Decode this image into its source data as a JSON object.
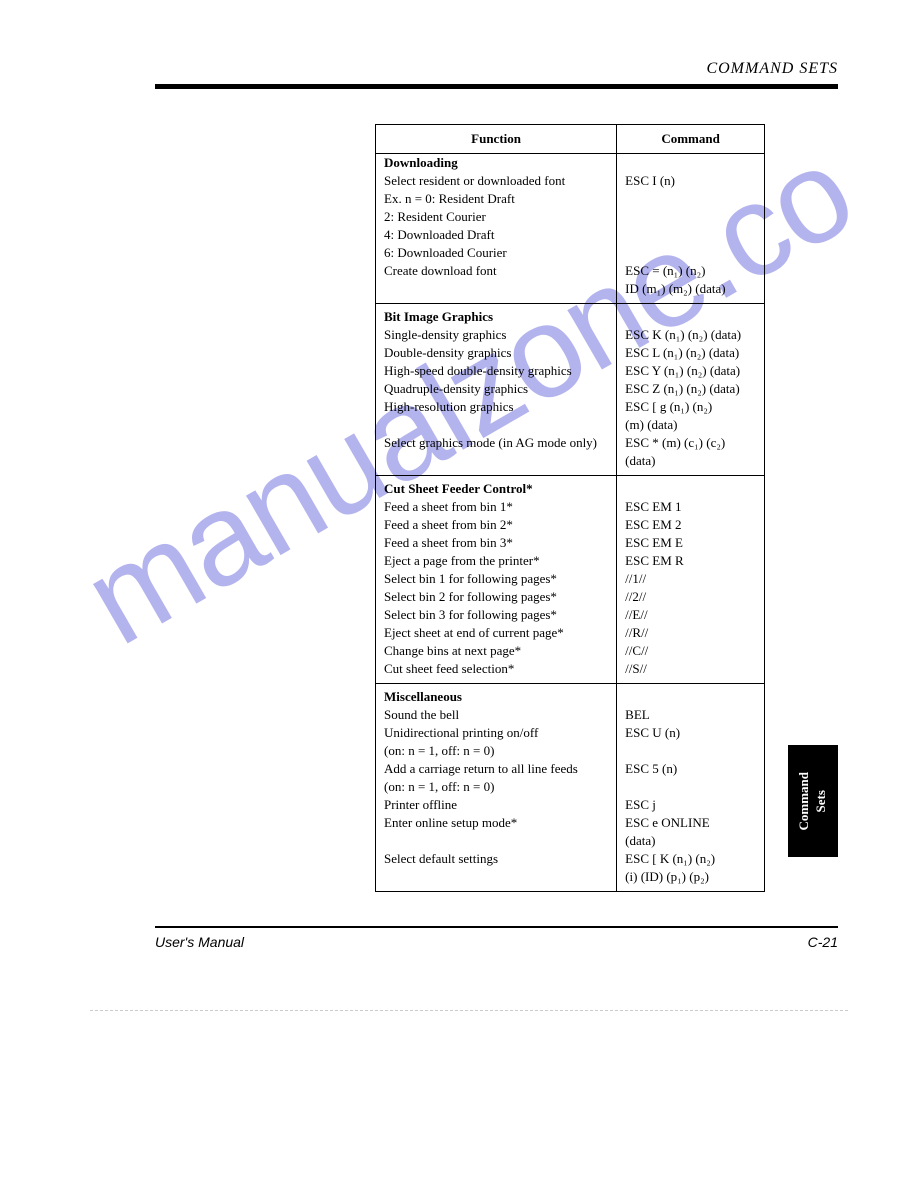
{
  "header": "COMMAND SETS",
  "watermark": "manualzone.co",
  "table": {
    "col_function": "Function",
    "col_command": "Command",
    "sections": {
      "downloading": {
        "title": "Downloading",
        "rows": [
          {
            "func": "Select resident or downloaded font",
            "cmd": "ESC I (n)"
          },
          {
            "func": "Ex. n = 0:   Resident Draft",
            "cmd": ""
          },
          {
            "func": "2:   Resident Courier",
            "cmd": ""
          },
          {
            "func": "4:   Downloaded Draft",
            "cmd": ""
          },
          {
            "func": "6:   Downloaded Courier",
            "cmd": ""
          },
          {
            "func": "Create download font",
            "cmd": "ESC = (n₁) (n₂)"
          },
          {
            "func": "",
            "cmd": "ID (m₁) (m₂) (data)"
          }
        ]
      },
      "bitimage": {
        "title": "Bit Image Graphics",
        "rows": [
          {
            "func": "Single-density graphics",
            "cmd": "ESC K (n₁) (n₂) (data)"
          },
          {
            "func": "Double-density graphics",
            "cmd": "ESC L (n₁) (n₂) (data)"
          },
          {
            "func": "High-speed double-density graphics",
            "cmd": "ESC Y (n₁) (n₂) (data)"
          },
          {
            "func": "Quadruple-density graphics",
            "cmd": "ESC Z (n₁) (n₂) (data)"
          },
          {
            "func": "High-resolution graphics",
            "cmd": "ESC [ g (n₁) (n₂)"
          },
          {
            "func": "",
            "cmd": "(m) (data)"
          },
          {
            "func": "Select graphics mode (in AG mode only)",
            "cmd": "ESC * (m) (c₁) (c₂)"
          },
          {
            "func": "",
            "cmd": "(data)"
          }
        ]
      },
      "cutsheet": {
        "title": "Cut Sheet Feeder Control*",
        "rows": [
          {
            "func": "Feed a sheet from bin 1*",
            "cmd": "ESC EM 1"
          },
          {
            "func": "Feed a sheet from bin 2*",
            "cmd": "ESC EM 2"
          },
          {
            "func": "Feed a sheet from bin 3*",
            "cmd": "ESC EM E"
          },
          {
            "func": "Eject a page from the printer*",
            "cmd": "ESC EM R"
          },
          {
            "func": "Select bin 1 for following pages*",
            "cmd": "//1//"
          },
          {
            "func": "Select bin 2 for following pages*",
            "cmd": "//2//"
          },
          {
            "func": "Select bin 3 for following pages*",
            "cmd": "//E//"
          },
          {
            "func": "Eject sheet at end of current page*",
            "cmd": "//R//"
          },
          {
            "func": "Change bins at next page*",
            "cmd": "//C//"
          },
          {
            "func": "Cut sheet feed selection*",
            "cmd": "//S//"
          }
        ]
      },
      "misc": {
        "title": "Miscellaneous",
        "rows": [
          {
            "func": "Sound the bell",
            "cmd": "BEL"
          },
          {
            "func": "Unidirectional printing on/off",
            "cmd": "ESC U (n)"
          },
          {
            "func": "(on:  n = 1, off:  n = 0)",
            "cmd": ""
          },
          {
            "func": "Add a carriage return to all line feeds",
            "cmd": "ESC 5 (n)"
          },
          {
            "func": "(on:  n = 1, off:  n = 0)",
            "cmd": ""
          },
          {
            "func": "Printer offline",
            "cmd": "ESC j"
          },
          {
            "func": "Enter online setup mode*",
            "cmd": "ESC e ONLINE"
          },
          {
            "func": "",
            "cmd": "(data)"
          },
          {
            "func": "Select default settings",
            "cmd": "ESC [ K (n₁) (n₂)"
          },
          {
            "func": "",
            "cmd": "(i) (ID) (p₁) (p₂)"
          }
        ]
      }
    }
  },
  "side_tab": "Command\nSets",
  "footer_left": "User's Manual",
  "footer_right": "C-21"
}
